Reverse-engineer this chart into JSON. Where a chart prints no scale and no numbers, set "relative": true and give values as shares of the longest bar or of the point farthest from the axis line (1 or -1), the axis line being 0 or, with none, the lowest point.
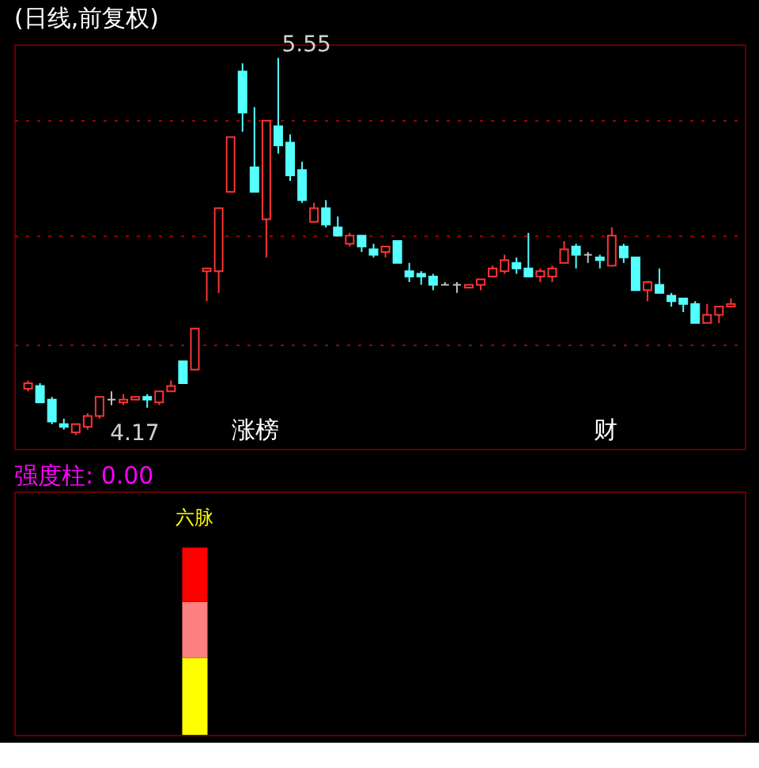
{
  "chart_data": [
    {
      "type": "candlestick",
      "title": "(日线,前复权)",
      "categories": [
        null,
        null,
        null,
        null,
        null,
        null,
        null,
        null,
        null,
        null,
        null,
        null,
        null,
        null,
        null,
        null,
        null,
        null,
        null,
        null,
        null,
        null,
        null,
        null,
        null,
        null,
        null,
        null,
        null,
        null,
        null,
        null,
        null,
        null,
        null,
        null,
        null,
        null,
        null,
        null,
        null,
        null,
        null,
        null,
        null,
        null,
        null,
        null,
        null,
        null,
        null,
        null,
        null,
        null,
        null,
        null,
        null,
        null,
        null,
        null
      ],
      "ohlc": [
        [
          4.34,
          4.37,
          4.33,
          4.36
        ],
        [
          4.35,
          4.36,
          4.29,
          4.29
        ],
        [
          4.3,
          4.31,
          4.21,
          4.22
        ],
        [
          4.21,
          4.23,
          4.19,
          4.2
        ],
        [
          4.18,
          4.21,
          4.17,
          4.21
        ],
        [
          4.2,
          4.25,
          4.19,
          4.24
        ],
        [
          4.24,
          4.31,
          4.23,
          4.31
        ],
        [
          4.3,
          4.33,
          4.28,
          4.3
        ],
        [
          4.29,
          4.32,
          4.28,
          4.3
        ],
        [
          4.3,
          4.31,
          4.3,
          4.31
        ],
        [
          4.31,
          4.32,
          4.27,
          4.3
        ],
        [
          4.29,
          4.33,
          4.28,
          4.33
        ],
        [
          4.33,
          4.37,
          4.33,
          4.35
        ],
        [
          4.44,
          4.44,
          4.36,
          4.36
        ],
        [
          4.41,
          4.56,
          4.41,
          4.56
        ],
        [
          4.77,
          4.78,
          4.66,
          4.78
        ],
        [
          4.77,
          5.0,
          4.69,
          5.0
        ],
        [
          5.06,
          5.26,
          5.06,
          5.26
        ],
        [
          5.5,
          5.53,
          5.28,
          5.35
        ],
        [
          5.15,
          5.37,
          5.06,
          5.06
        ],
        [
          4.96,
          5.32,
          4.82,
          5.32
        ],
        [
          5.3,
          5.55,
          5.2,
          5.23
        ],
        [
          5.24,
          5.27,
          5.1,
          5.12
        ],
        [
          5.14,
          5.17,
          5.02,
          5.03
        ],
        [
          4.95,
          5.02,
          4.95,
          5.0
        ],
        [
          5.0,
          5.03,
          4.93,
          4.94
        ],
        [
          4.93,
          4.97,
          4.9,
          4.9
        ],
        [
          4.87,
          4.91,
          4.86,
          4.9
        ],
        [
          4.9,
          4.9,
          4.84,
          4.86
        ],
        [
          4.85,
          4.87,
          4.82,
          4.83
        ],
        [
          4.84,
          4.86,
          4.82,
          4.86
        ],
        [
          4.88,
          4.88,
          4.8,
          4.8
        ],
        [
          4.77,
          4.8,
          4.73,
          4.75
        ],
        [
          4.76,
          4.77,
          4.72,
          4.75
        ],
        [
          4.75,
          4.76,
          4.7,
          4.72
        ],
        [
          4.72,
          4.73,
          4.72,
          4.72
        ],
        [
          4.72,
          4.73,
          4.69,
          4.72
        ],
        [
          4.71,
          4.72,
          4.71,
          4.72
        ],
        [
          4.72,
          4.74,
          4.7,
          4.74
        ],
        [
          4.75,
          4.79,
          4.75,
          4.78
        ],
        [
          4.77,
          4.83,
          4.76,
          4.81
        ],
        [
          4.8,
          4.82,
          4.76,
          4.78
        ],
        [
          4.78,
          4.91,
          4.75,
          4.75
        ],
        [
          4.75,
          4.78,
          4.73,
          4.77
        ],
        [
          4.75,
          4.79,
          4.73,
          4.78
        ],
        [
          4.8,
          4.88,
          4.8,
          4.85
        ],
        [
          4.86,
          4.87,
          4.78,
          4.83
        ],
        [
          4.83,
          4.84,
          4.8,
          4.83
        ],
        [
          4.82,
          4.83,
          4.78,
          4.81
        ],
        [
          4.79,
          4.93,
          4.79,
          4.9
        ],
        [
          4.86,
          4.87,
          4.8,
          4.82
        ],
        [
          4.82,
          4.82,
          4.7,
          4.7
        ],
        [
          4.7,
          4.73,
          4.66,
          4.73
        ],
        [
          4.72,
          4.78,
          4.69,
          4.69
        ],
        [
          4.68,
          4.69,
          4.64,
          4.66
        ],
        [
          4.67,
          4.67,
          4.62,
          4.65
        ],
        [
          4.65,
          4.66,
          4.58,
          4.58
        ],
        [
          4.58,
          4.65,
          4.58,
          4.61
        ],
        [
          4.61,
          4.64,
          4.58,
          4.64
        ],
        [
          4.64,
          4.67,
          4.64,
          4.65
        ]
      ],
      "colors": [
        "#ff3333",
        "#54ffff",
        "#54ffff",
        "#54ffff",
        "#ff3333",
        "#ff3333",
        "#ff3333",
        "#c0c0c0",
        "#ff3333",
        "#ff3333",
        "#54ffff",
        "#ff3333",
        "#ff3333",
        "#54ffff",
        "#ff3333",
        "#ff3333",
        "#ff3333",
        "#ff3333",
        "#54ffff",
        "#54ffff",
        "#ff3333",
        "#54ffff",
        "#54ffff",
        "#54ffff",
        "#ff3333",
        "#54ffff",
        "#54ffff",
        "#ff3333",
        "#54ffff",
        "#54ffff",
        "#ff3333",
        "#54ffff",
        "#54ffff",
        "#54ffff",
        "#54ffff",
        "#c0c0c0",
        "#c0c0c0",
        "#ff3333",
        "#ff3333",
        "#ff3333",
        "#ff3333",
        "#54ffff",
        "#54ffff",
        "#ff3333",
        "#ff3333",
        "#ff3333",
        "#54ffff",
        "#c0c0c0",
        "#54ffff",
        "#ff3333",
        "#54ffff",
        "#54ffff",
        "#ff3333",
        "#54ffff",
        "#54ffff",
        "#54ffff",
        "#54ffff",
        "#ff3333",
        "#ff3333",
        "#ff3333"
      ],
      "ylim": [
        4.12,
        5.6
      ],
      "yticks": [
        {
          "value": 4.5,
          "label": null
        },
        {
          "value": 4.9,
          "label": null
        },
        {
          "value": 5.32,
          "label": null
        }
      ],
      "grid": true,
      "annotations": [
        "4.17",
        "5.55",
        "涨榜",
        "财"
      ]
    },
    {
      "type": "bar",
      "title": "强度柱: 0.00",
      "stacked": true,
      "relative": true,
      "categories": [
        null,
        null,
        null,
        null,
        null,
        null,
        null,
        null,
        null,
        null,
        null,
        null,
        null,
        null,
        null,
        null,
        null,
        null,
        null,
        null,
        null,
        null,
        null,
        null,
        null,
        null,
        null,
        null,
        null,
        null,
        null,
        null,
        null,
        null,
        null,
        null,
        null,
        null,
        null,
        null,
        null,
        null,
        null,
        null,
        null,
        null,
        null,
        null,
        null,
        null,
        null,
        null,
        null,
        null,
        null,
        null,
        null,
        null,
        null,
        null
      ],
      "series": [
        {
          "color": "#ffff00",
          "values": [
            null,
            null,
            null,
            null,
            null,
            null,
            null,
            null,
            null,
            null,
            null,
            null,
            null,
            null,
            0.41,
            null,
            null,
            null,
            null,
            null,
            null,
            null,
            null,
            null,
            null,
            null,
            null,
            null,
            null,
            null,
            null,
            null,
            null,
            null,
            null,
            null,
            null,
            null,
            null,
            null,
            null,
            null,
            null,
            null,
            null,
            null,
            null,
            null,
            null,
            null,
            null,
            null,
            null,
            null,
            null,
            null,
            null,
            null,
            null,
            null
          ]
        },
        {
          "color": "#ff8080",
          "values": [
            null,
            null,
            null,
            null,
            null,
            null,
            null,
            null,
            null,
            null,
            null,
            null,
            null,
            null,
            0.3,
            null,
            null,
            null,
            null,
            null,
            null,
            null,
            null,
            null,
            null,
            null,
            null,
            null,
            null,
            null,
            null,
            null,
            null,
            null,
            null,
            null,
            null,
            null,
            null,
            null,
            null,
            null,
            null,
            null,
            null,
            null,
            null,
            null,
            null,
            null,
            null,
            null,
            null,
            null,
            null,
            null,
            null,
            null,
            null,
            null
          ]
        },
        {
          "color": "#ff0000",
          "values": [
            null,
            null,
            null,
            null,
            null,
            null,
            null,
            null,
            null,
            null,
            null,
            null,
            null,
            null,
            0.29,
            null,
            null,
            null,
            null,
            null,
            null,
            null,
            null,
            null,
            null,
            null,
            null,
            null,
            null,
            null,
            null,
            null,
            null,
            null,
            null,
            null,
            null,
            null,
            null,
            null,
            null,
            null,
            null,
            null,
            null,
            null,
            null,
            null,
            null,
            null,
            null,
            null,
            null,
            null,
            null,
            null,
            null,
            null,
            null,
            null
          ]
        }
      ],
      "annotations": [
        "六脉"
      ]
    }
  ]
}
